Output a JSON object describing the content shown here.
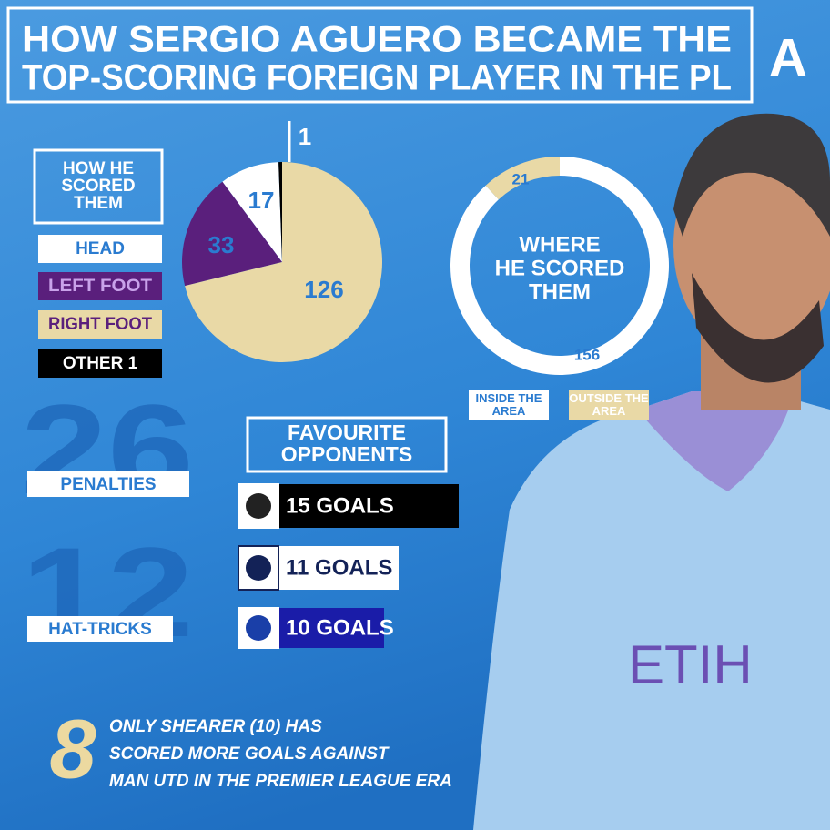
{
  "title_lines": [
    "HOW SERGIO AGUERO BECAME THE",
    "TOP-SCORING FOREIGN PLAYER IN THE PL"
  ],
  "logo": "A",
  "chart_data": [
    {
      "type": "pie",
      "title_lines": [
        "HOW HE",
        "SCORED",
        "THEM"
      ],
      "categories": [
        "HEAD",
        "LEFT FOOT",
        "RIGHT FOOT",
        "OTHER 1"
      ],
      "values": [
        17,
        33,
        126,
        1
      ],
      "colors": [
        "#ffffff",
        "#5a1f7c",
        "#e9d9a6",
        "#000000"
      ]
    },
    {
      "type": "donut",
      "title_lines": [
        "WHERE",
        "HE SCORED",
        "THEM"
      ],
      "categories": [
        "INSIDE THE AREA",
        "OUTSIDE THE AREA"
      ],
      "values": [
        156,
        21
      ],
      "colors": [
        "#ffffff",
        "#e9d9a6"
      ]
    }
  ],
  "stats": [
    {
      "value": 26,
      "label": "PENALTIES"
    },
    {
      "value": 12,
      "label": "HAT-TRICKS"
    }
  ],
  "favourite_opponents": {
    "title_lines": [
      "FAVOURITE",
      "OPPONENTS"
    ],
    "items": [
      "15 GOALS",
      "11 GOALS",
      "10 GOALS"
    ]
  },
  "footnote": {
    "number": 8,
    "lines": [
      "ONLY SHEARER (10) HAS",
      "SCORED MORE GOALS AGAINST",
      "MAN UTD IN THE PREMIER LEAGUE ERA"
    ]
  }
}
